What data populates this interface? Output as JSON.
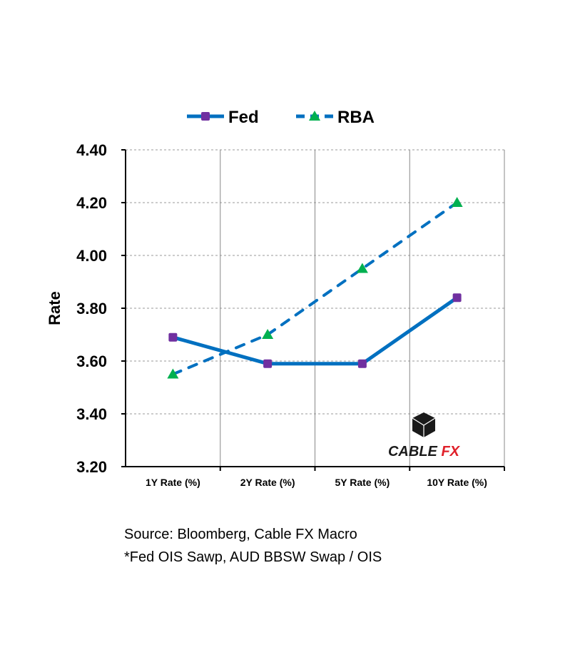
{
  "chart_data": {
    "type": "line",
    "title": "",
    "xlabel": "",
    "ylabel": "Rate",
    "categories": [
      "1Y Rate (%)",
      "2Y Rate (%)",
      "5Y Rate (%)",
      "10Y Rate (%)"
    ],
    "ylim": [
      3.2,
      4.4
    ],
    "yticks": [
      "3.20",
      "3.40",
      "3.60",
      "3.80",
      "4.00",
      "4.20",
      "4.40"
    ],
    "grid": true,
    "legend_position": "top",
    "series": [
      {
        "name": "Fed",
        "values": [
          3.69,
          3.59,
          3.59,
          3.84
        ],
        "line_color": "#0070C0",
        "marker": "square",
        "marker_color": "#7030A0",
        "dash": false
      },
      {
        "name": "RBA",
        "values": [
          3.55,
          3.7,
          3.95,
          4.2
        ],
        "line_color": "#0070C0",
        "marker": "triangle",
        "marker_color": "#00B050",
        "dash": true
      }
    ]
  },
  "logo": {
    "text_part1": "CABLE",
    "text_part2": "FX",
    "color_dark": "#1a1a1a",
    "color_red": "#E0202A"
  },
  "notes": {
    "source": "Source: Bloomberg, Cable FX Macro",
    "footnote": "*Fed OIS Sawp, AUD BBSW Swap / OIS"
  }
}
